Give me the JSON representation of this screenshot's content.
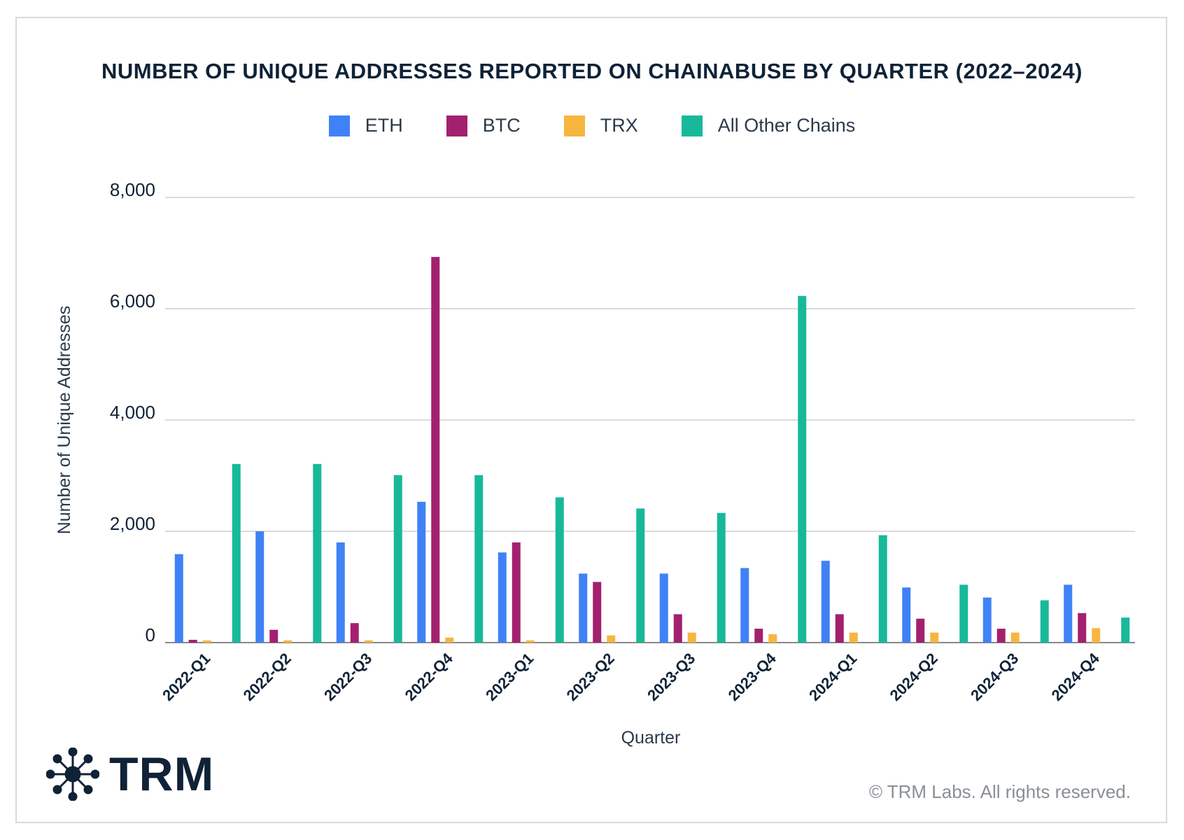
{
  "chart_data": {
    "type": "bar",
    "title": "NUMBER OF UNIQUE ADDRESSES REPORTED ON CHAINABUSE BY QUARTER (2022–2024)",
    "xlabel": "Quarter",
    "ylabel": "Number of Unique Addresses",
    "ylim": [
      0,
      8000
    ],
    "yticks": [
      0,
      2000,
      4000,
      6000,
      8000
    ],
    "ytick_labels": [
      "0",
      "2,000",
      "4,000",
      "6,000",
      "8,000"
    ],
    "grid": true,
    "legend_position": "top-center",
    "categories": [
      "2022-Q1",
      "2022-Q2",
      "2022-Q3",
      "2022-Q4",
      "2023-Q1",
      "2023-Q2",
      "2023-Q3",
      "2023-Q4",
      "2024-Q1",
      "2024-Q2",
      "2024-Q3",
      "2024-Q4"
    ],
    "series": [
      {
        "name": "ETH",
        "color": "#3f82f7",
        "values": [
          1590,
          2000,
          1800,
          2530,
          1620,
          1240,
          1240,
          1340,
          1470,
          990,
          810,
          1040
        ]
      },
      {
        "name": "BTC",
        "color": "#a3206f",
        "values": [
          50,
          230,
          350,
          6930,
          1800,
          1090,
          510,
          250,
          510,
          430,
          250,
          530
        ]
      },
      {
        "name": "TRX",
        "color": "#f6b63f",
        "values": [
          40,
          40,
          40,
          90,
          40,
          130,
          180,
          150,
          180,
          180,
          180,
          260
        ]
      },
      {
        "name": "All Other Chains",
        "color": "#17b99a",
        "values": [
          3210,
          3210,
          3010,
          3010,
          2610,
          2410,
          2330,
          6230,
          1930,
          1040,
          760,
          450
        ]
      }
    ]
  },
  "branding": {
    "logo_text": "TRM",
    "copyright": "© TRM Labs. All rights reserved."
  }
}
